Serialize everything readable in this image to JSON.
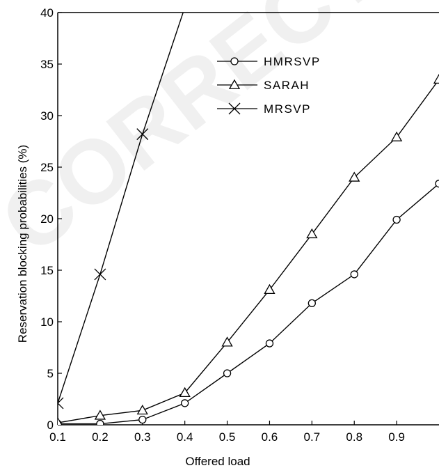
{
  "chart_data": {
    "type": "line",
    "watermark": "CORRECTED",
    "title": "",
    "xlabel": "Offered load",
    "ylabel": "Reservation blocking probabilities (%)",
    "xlim": [
      0.1,
      1.0
    ],
    "ylim": [
      0,
      40
    ],
    "x_ticks": [
      "0.1",
      "0.2",
      "0.3",
      "0.4",
      "0.5",
      "0.6",
      "0.7",
      "0.8",
      "0.9"
    ],
    "y_ticks": [
      "0",
      "5",
      "10",
      "15",
      "20",
      "25",
      "30",
      "35",
      "40"
    ],
    "grid": false,
    "legend_position": "top-center",
    "series": [
      {
        "name": "HMRSVP",
        "marker": "circle",
        "color": "#000000",
        "x": [
          0.1,
          0.2,
          0.3,
          0.4,
          0.5,
          0.6,
          0.7,
          0.8,
          0.9,
          1.0
        ],
        "y": [
          0.1,
          0.1,
          0.5,
          2.1,
          5.0,
          7.9,
          11.8,
          14.6,
          19.9,
          23.4
        ]
      },
      {
        "name": "SARAH",
        "marker": "triangle",
        "color": "#000000",
        "x": [
          0.1,
          0.2,
          0.3,
          0.4,
          0.5,
          0.6,
          0.7,
          0.8,
          0.9,
          1.0
        ],
        "y": [
          0.2,
          0.9,
          1.4,
          3.1,
          8.0,
          13.1,
          18.5,
          24.0,
          27.9,
          33.5
        ]
      },
      {
        "name": "MRSVP",
        "marker": "x",
        "color": "#000000",
        "x": [
          0.1,
          0.2,
          0.3,
          0.4
        ],
        "y": [
          2.1,
          14.6,
          28.2,
          40.5
        ]
      }
    ]
  }
}
